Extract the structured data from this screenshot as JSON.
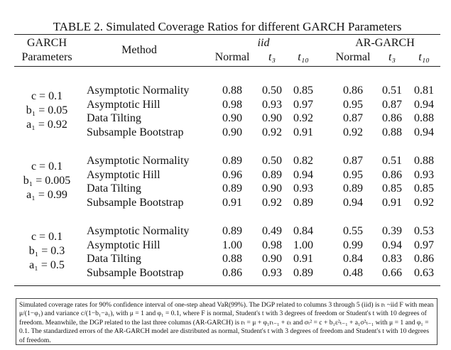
{
  "title": "TABLE 2. Simulated Coverage Ratios for different GARCH Parameters",
  "header": {
    "garch": [
      "GARCH",
      "Parameters"
    ],
    "method": "Method",
    "groups": [
      "iid",
      "AR-GARCH"
    ],
    "columns": [
      "Normal",
      "t₃",
      "t₁₀",
      "Normal",
      "t₃",
      "t₁₀"
    ]
  },
  "groups": [
    {
      "params": [
        "c = 0.1",
        "b₁ = 0.05",
        "a₁ = 0.92"
      ],
      "rows": [
        {
          "method": "Asymptotic Normality",
          "values": [
            "0.88",
            "0.50",
            "0.85",
            "0.86",
            "0.51",
            "0.81"
          ]
        },
        {
          "method": "Asymptotic Hill",
          "values": [
            "0.98",
            "0.93",
            "0.97",
            "0.95",
            "0.87",
            "0.94"
          ]
        },
        {
          "method": "Data Tilting",
          "values": [
            "0.90",
            "0.90",
            "0.92",
            "0.87",
            "0.86",
            "0.88"
          ]
        },
        {
          "method": "Subsample Bootstrap",
          "values": [
            "0.90",
            "0.92",
            "0.91",
            "0.92",
            "0.88",
            "0.94"
          ]
        }
      ]
    },
    {
      "params": [
        "c = 0.1",
        "b₁ = 0.005",
        "a₁ = 0.99"
      ],
      "rows": [
        {
          "method": "Asymptotic Normality",
          "values": [
            "0.89",
            "0.50",
            "0.82",
            "0.87",
            "0.51",
            "0.88"
          ]
        },
        {
          "method": "Asymptotic Hill",
          "values": [
            "0.96",
            "0.89",
            "0.94",
            "0.95",
            "0.86",
            "0.93"
          ]
        },
        {
          "method": "Data Tilting",
          "values": [
            "0.89",
            "0.90",
            "0.93",
            "0.89",
            "0.85",
            "0.85"
          ]
        },
        {
          "method": "Subsample Bootstrap",
          "values": [
            "0.91",
            "0.92",
            "0.89",
            "0.94",
            "0.91",
            "0.92"
          ]
        }
      ]
    },
    {
      "params": [
        "c = 0.1",
        "b₁ = 0.3",
        "a₁ = 0.5"
      ],
      "rows": [
        {
          "method": "Asymptotic Normality",
          "values": [
            "0.89",
            "0.49",
            "0.84",
            "0.55",
            "0.39",
            "0.53"
          ]
        },
        {
          "method": "Asymptotic Hill",
          "values": [
            "1.00",
            "0.98",
            "1.00",
            "0.99",
            "0.94",
            "0.97"
          ]
        },
        {
          "method": "Data Tilting",
          "values": [
            "0.88",
            "0.90",
            "0.91",
            "0.84",
            "0.83",
            "0.86"
          ]
        },
        {
          "method": "Subsample Bootstrap",
          "values": [
            "0.86",
            "0.93",
            "0.89",
            "0.48",
            "0.66",
            "0.63"
          ]
        }
      ]
    }
  ],
  "footnote": "Simulated coverage rates for 90% confidence interval of one-step ahead VaR(99%). The DGP related to columns 3 through 5 (iid) is rₜ ~iid F with mean μ/(1−φ₁) and variance c/(1−b₁−a₁), with μ = 1 and φ₁ = 0.1, where F is normal, Student's t with 3 degrees of freedom or Student's t with 10 degrees of freedom. Meanwhile, the DGP related to the last three columns (AR-GARCH) is rₜ = μ + φ₁rₜ₋₁ + εₜ and σₜ² = c + b₁ε²ₜ₋₁ + a₁σ²ₜ₋₁ with μ = 1 and φ₁ = 0.1. The standardized errors of the AR-GARCH model are distributed as normal, Student's t with 3 degrees of freedom and Student's t with 10 degrees of freedom."
}
